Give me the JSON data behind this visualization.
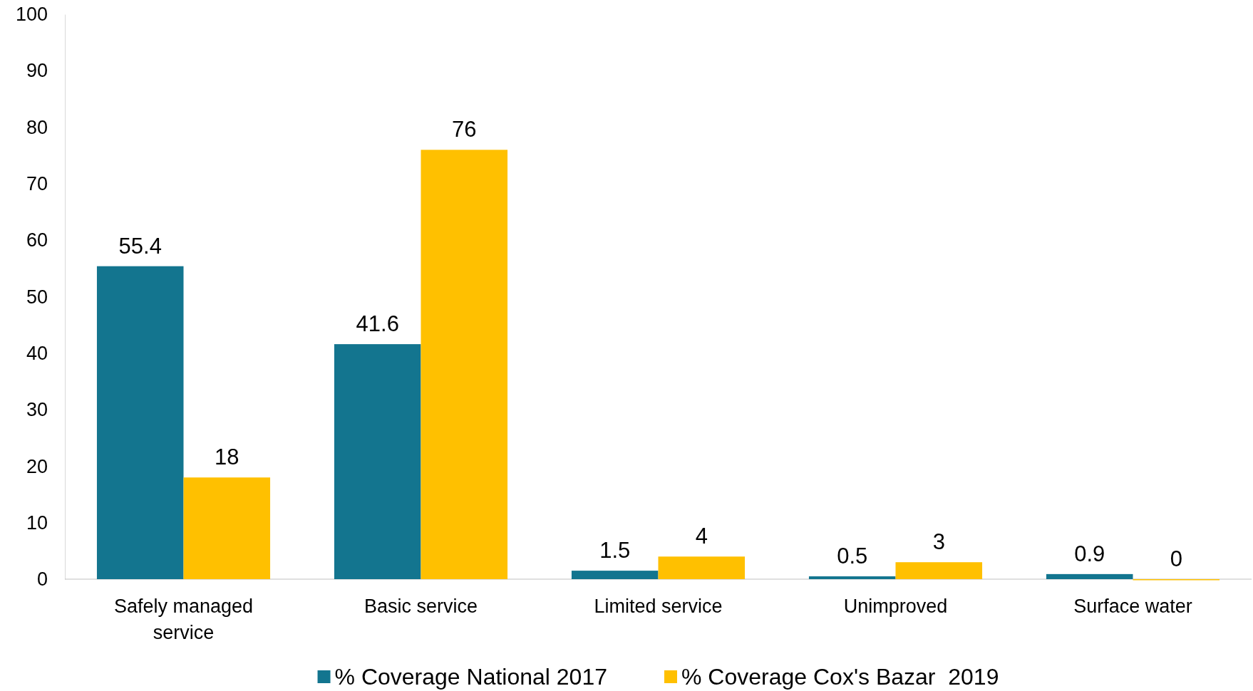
{
  "chart_data": {
    "type": "bar",
    "categories": [
      "Safely managed service",
      "Basic service",
      "Limited service",
      "Unimproved",
      "Surface water"
    ],
    "series": [
      {
        "name": "% Coverage National 2017",
        "color": "#13758f",
        "values": [
          55.4,
          41.6,
          1.5,
          0.5,
          0.9
        ]
      },
      {
        "name": "% Coverage Cox's Bazar  2019",
        "color": "#ffc000",
        "values": [
          18,
          76,
          4,
          3,
          0
        ]
      }
    ],
    "ylim": [
      0,
      100
    ],
    "yticks": [
      0,
      10,
      20,
      30,
      40,
      50,
      60,
      70,
      80,
      90,
      100
    ],
    "grid": false,
    "legend": "bottom",
    "data_labels": true
  }
}
